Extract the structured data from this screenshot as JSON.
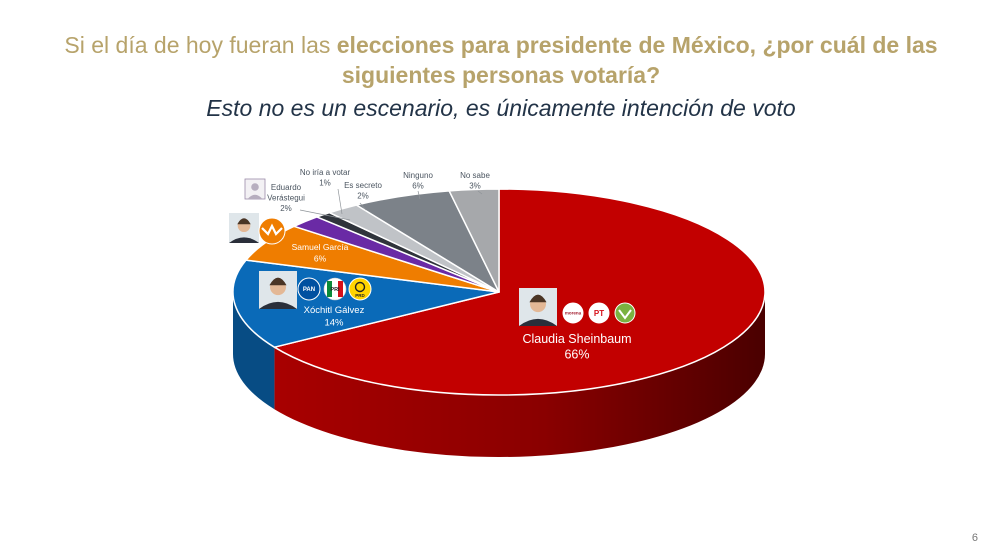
{
  "header": {
    "title_normal": "Si el día de hoy fueran las",
    "title_bold": "elecciones para presidente de México, ¿por cuál de las siguientes personas votaría?",
    "subtitle": "Esto no es un escenario, es únicamente intención de voto"
  },
  "page_number": "6",
  "colors": {
    "title": "#b7a36b",
    "subtitle": "#223347"
  },
  "chart_data": {
    "type": "pie",
    "style": "3d",
    "slices": [
      {
        "label": "Claudia Sheinbaum",
        "value": 66,
        "value_label": "66%",
        "color": "#c20000",
        "logos": [
          "morena-logo",
          "pt-logo",
          "pvem-logo"
        ]
      },
      {
        "label": "Xóchitl Gálvez",
        "value": 14,
        "value_label": "14%",
        "color": "#0a6ab8",
        "logos": [
          "pan-logo",
          "pri-logo",
          "prd-logo"
        ]
      },
      {
        "label": "Samuel García",
        "value": 6,
        "value_label": "6%",
        "color": "#ef7d00",
        "logos": [
          "mc-logo"
        ]
      },
      {
        "label": "Eduardo Verástegui",
        "value": 2,
        "value_label": "2%",
        "color": "#6a2aa5",
        "logos": []
      },
      {
        "label": "No iría a votar",
        "value": 1,
        "value_label": "1%",
        "color": "#2f343b",
        "logos": []
      },
      {
        "label": "Es secreto",
        "value": 2,
        "value_label": "2%",
        "color": "#c0c3c7",
        "logos": []
      },
      {
        "label": "Ninguno",
        "value": 6,
        "value_label": "6%",
        "color": "#7c8289",
        "logos": []
      },
      {
        "label": "No sabe",
        "value": 3,
        "value_label": "3%",
        "color": "#a6a8ab",
        "logos": []
      }
    ],
    "logo_text": {
      "morena": "morena",
      "pt": "PT",
      "pan": "PAN",
      "pri": "PRI",
      "prd": "PRD"
    }
  }
}
